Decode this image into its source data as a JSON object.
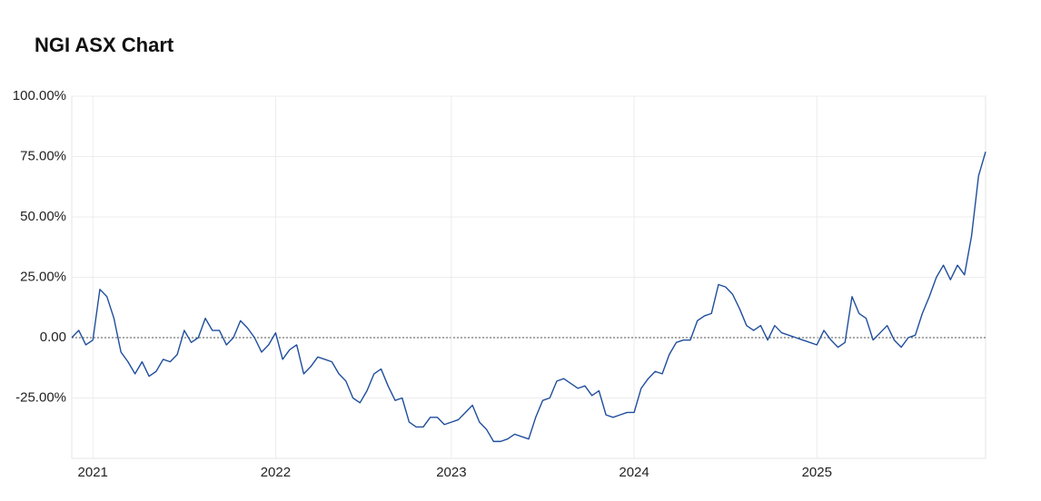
{
  "chart_data": {
    "type": "line",
    "title": "NGI ASX Chart",
    "categories": [
      null,
      null,
      null,
      "2021",
      null,
      null,
      null,
      null,
      null,
      null,
      null,
      null,
      null,
      null,
      null,
      null,
      null,
      null,
      null,
      null,
      null,
      null,
      null,
      null,
      null,
      null,
      null,
      null,
      null,
      "2022",
      null,
      null,
      null,
      null,
      null,
      null,
      null,
      null,
      null,
      null,
      null,
      null,
      null,
      null,
      null,
      null,
      null,
      null,
      null,
      null,
      null,
      null,
      null,
      null,
      "2023",
      null,
      null,
      null,
      null,
      null,
      null,
      null,
      null,
      null,
      null,
      null,
      null,
      null,
      null,
      null,
      null,
      null,
      null,
      null,
      null,
      null,
      null,
      null,
      null,
      null,
      "2024",
      null,
      null,
      null,
      null,
      null,
      null,
      null,
      null,
      null,
      null,
      null,
      null,
      null,
      null,
      null,
      null,
      null,
      null,
      null,
      null,
      null,
      null,
      null,
      null,
      null,
      "2025",
      null,
      null,
      null,
      null,
      null,
      null,
      null,
      null,
      null,
      null,
      null,
      null,
      null,
      null,
      null,
      null,
      null,
      null,
      null,
      null,
      null,
      null,
      null,
      null
    ],
    "series": [
      {
        "color": "#1f4e9c",
        "values": [
          0,
          3,
          -3,
          -1,
          20,
          17,
          8,
          -6,
          -10,
          -15,
          -10,
          -16,
          -14,
          -9,
          -10,
          -7,
          3,
          -2,
          0,
          8,
          3,
          3,
          -3,
          0,
          7,
          4,
          0,
          -6,
          -3,
          2,
          -9,
          -5,
          -3,
          -15,
          -12,
          -8,
          -9,
          -10,
          -15,
          -18,
          -25,
          -27,
          -22,
          -15,
          -13,
          -20,
          -26,
          -25,
          -35,
          -37,
          -37,
          -33,
          -33,
          -36,
          -35,
          -34,
          -31,
          -28,
          -35,
          -38,
          -43,
          -43,
          -42,
          -40,
          -41,
          -42,
          -33,
          -26,
          -25,
          -18,
          -17,
          -19,
          -21,
          -20,
          -24,
          -22,
          -32,
          -33,
          -32,
          -31,
          -31,
          -21,
          -17,
          -14,
          -15,
          -7,
          -2,
          -1,
          -1,
          7,
          9,
          10,
          22,
          21,
          18,
          12,
          5,
          3,
          5,
          -1,
          5,
          2,
          1,
          0,
          -1,
          -2,
          -3,
          3,
          -1,
          -4,
          -2,
          17,
          10,
          8,
          -1,
          2,
          5,
          -1,
          -4,
          0,
          1,
          10,
          17,
          25,
          30,
          24,
          30,
          26,
          42,
          67,
          77
        ]
      }
    ],
    "ylim": [
      -50,
      100
    ],
    "yticks": [
      {
        "value": -25,
        "label": "-25.00%"
      },
      {
        "value": 0,
        "label": "0.00"
      },
      {
        "value": 25,
        "label": "25.00%"
      },
      {
        "value": 50,
        "label": "50.00%"
      },
      {
        "value": 75,
        "label": "75.00%"
      },
      {
        "value": 100,
        "label": "100.00%"
      }
    ],
    "grid": true
  }
}
